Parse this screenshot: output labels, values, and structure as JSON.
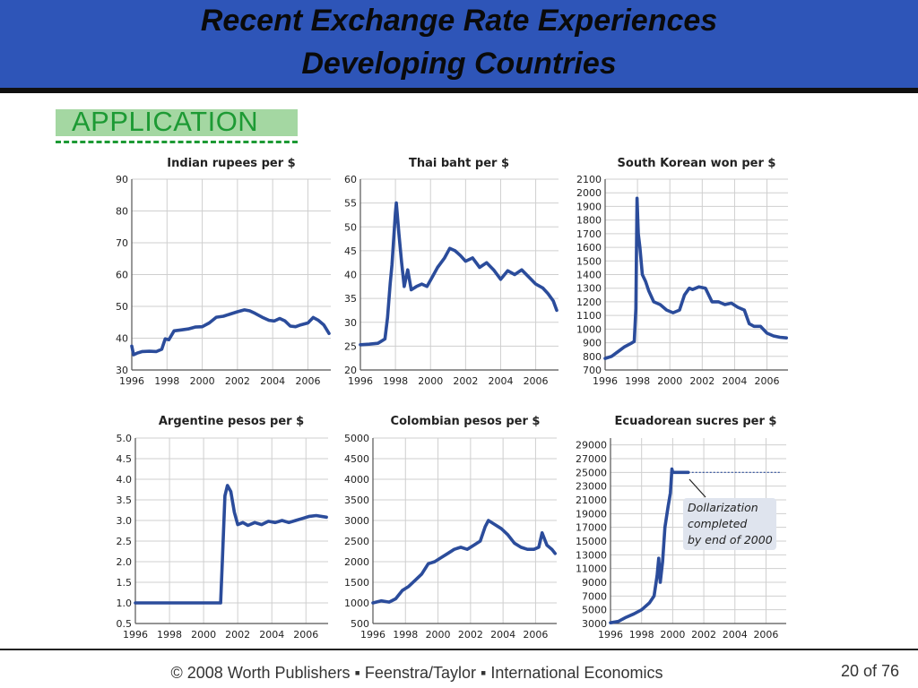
{
  "slide": {
    "title_line1": "Recent Exchange Rate Experiences",
    "title_line2": "Developing Countries",
    "tag": "APPLICATION",
    "footer": "© 2008 Worth Publishers ▪ Feenstra/Taylor ▪ International Economics",
    "page": "20 of 76"
  },
  "colors": {
    "header": "#2e55b8",
    "line": "#2b4c9b",
    "tag": "#1d9a34",
    "tag_bg": "#a4d7a2",
    "grid": "#cfcfcf"
  },
  "chart_data": [
    {
      "type": "line",
      "title": "Indian rupees per $",
      "xlim": [
        1996,
        2007.3
      ],
      "ylim": [
        30,
        90
      ],
      "xticks": [
        1996,
        1998,
        2000,
        2002,
        2004,
        2006
      ],
      "xtick_labels": [
        "1996",
        "1998",
        "2000",
        "2002",
        "2004",
        "2006"
      ],
      "yticks": [
        30,
        40,
        50,
        60,
        70,
        80,
        90
      ],
      "ytick_labels": [
        "30",
        "40",
        "50",
        "60",
        "70",
        "80",
        "90"
      ],
      "x": [
        1996.0,
        1996.1,
        1996.3,
        1996.6,
        1997.0,
        1997.4,
        1997.7,
        1997.9,
        1998.1,
        1998.4,
        1998.8,
        1999.2,
        1999.6,
        2000.0,
        2000.4,
        2000.8,
        2001.2,
        2001.6,
        2002.0,
        2002.4,
        2002.7,
        2003.0,
        2003.4,
        2003.8,
        2004.1,
        2004.4,
        2004.7,
        2005.0,
        2005.3,
        2005.6,
        2006.0,
        2006.3,
        2006.6,
        2006.9,
        2007.2
      ],
      "y": [
        37.5,
        34.8,
        35.3,
        35.8,
        35.9,
        35.8,
        36.5,
        39.8,
        39.5,
        42.3,
        42.6,
        42.9,
        43.5,
        43.6,
        44.8,
        46.6,
        46.9,
        47.6,
        48.3,
        48.9,
        48.6,
        47.8,
        46.6,
        45.6,
        45.4,
        46.2,
        45.4,
        43.8,
        43.6,
        44.2,
        44.8,
        46.5,
        45.6,
        44.2,
        41.5
      ]
    },
    {
      "type": "line",
      "title": "Thai baht per $",
      "xlim": [
        1996,
        2007.3
      ],
      "ylim": [
        20,
        60
      ],
      "xticks": [
        1996,
        1998,
        2000,
        2002,
        2004,
        2006
      ],
      "xtick_labels": [
        "1996",
        "1998",
        "2000",
        "2002",
        "2004",
        "2006"
      ],
      "yticks": [
        20,
        25,
        30,
        35,
        40,
        45,
        50,
        55,
        60
      ],
      "ytick_labels": [
        "20",
        "25",
        "30",
        "35",
        "40",
        "45",
        "50",
        "55",
        "60"
      ],
      "x": [
        1996.0,
        1996.5,
        1997.0,
        1997.4,
        1997.55,
        1997.7,
        1997.8,
        1998.0,
        1998.05,
        1998.2,
        1998.35,
        1998.5,
        1998.7,
        1998.9,
        1999.2,
        1999.5,
        1999.8,
        2000.1,
        2000.4,
        2000.8,
        2001.1,
        2001.4,
        2001.7,
        2002.0,
        2002.4,
        2002.8,
        2003.2,
        2003.6,
        2004.0,
        2004.4,
        2004.8,
        2005.2,
        2005.6,
        2006.0,
        2006.4,
        2006.7,
        2007.0,
        2007.2
      ],
      "y": [
        25.3,
        25.4,
        25.6,
        26.5,
        31.0,
        38.0,
        42.0,
        53.0,
        55.0,
        48.5,
        42.5,
        37.5,
        41.0,
        36.8,
        37.5,
        38.0,
        37.5,
        39.5,
        41.5,
        43.5,
        45.5,
        45.0,
        44.0,
        42.8,
        43.5,
        41.5,
        42.5,
        41.0,
        39.0,
        40.8,
        40.0,
        41.0,
        39.5,
        38.0,
        37.2,
        36.0,
        34.5,
        32.5
      ]
    },
    {
      "type": "line",
      "title": "South Korean won per $",
      "xlim": [
        1996,
        2007.3
      ],
      "ylim": [
        700,
        2100
      ],
      "xticks": [
        1996,
        1998,
        2000,
        2002,
        2004,
        2006
      ],
      "xtick_labels": [
        "1996",
        "1998",
        "2000",
        "2002",
        "2004",
        "2006"
      ],
      "yticks": [
        700,
        800,
        900,
        1000,
        1100,
        1200,
        1300,
        1400,
        1500,
        1600,
        1700,
        1800,
        1900,
        2000,
        2100
      ],
      "ytick_labels": [
        "700",
        "800",
        "900",
        "1000",
        "1100",
        "1200",
        "1300",
        "1400",
        "1500",
        "1600",
        "1700",
        "1800",
        "1900",
        "2000",
        "2100"
      ],
      "x": [
        1996.0,
        1996.4,
        1996.8,
        1997.2,
        1997.6,
        1997.8,
        1997.9,
        1997.97,
        1998.05,
        1998.15,
        1998.3,
        1998.5,
        1998.7,
        1999.0,
        1999.4,
        1999.8,
        2000.2,
        2000.6,
        2000.9,
        2001.2,
        2001.4,
        2001.8,
        2002.2,
        2002.6,
        2003.0,
        2003.4,
        2003.8,
        2004.2,
        2004.6,
        2004.9,
        2005.2,
        2005.6,
        2006.0,
        2006.4,
        2006.8,
        2007.2
      ],
      "y": [
        785,
        800,
        835,
        870,
        895,
        910,
        1150,
        1960,
        1700,
        1600,
        1400,
        1350,
        1280,
        1200,
        1180,
        1140,
        1120,
        1140,
        1250,
        1300,
        1290,
        1310,
        1300,
        1200,
        1200,
        1180,
        1190,
        1160,
        1140,
        1040,
        1020,
        1020,
        970,
        950,
        940,
        935
      ]
    },
    {
      "type": "line",
      "title": "Argentine pesos per $",
      "xlim": [
        1996,
        2007.3
      ],
      "ylim": [
        0.5,
        5.0
      ],
      "xticks": [
        1996,
        1998,
        2000,
        2002,
        2004,
        2006
      ],
      "xtick_labels": [
        "1996",
        "1998",
        "2000",
        "2002",
        "2004",
        "2006"
      ],
      "yticks": [
        0.5,
        1.0,
        1.5,
        2.0,
        2.5,
        3.0,
        3.5,
        4.0,
        4.5,
        5.0
      ],
      "ytick_labels": [
        "0.5",
        "1.0",
        "1.5",
        "2.0",
        "2.5",
        "3.0",
        "3.5",
        "4.0",
        "4.5",
        "5.0"
      ],
      "x": [
        1996.0,
        1998.0,
        2000.0,
        2001.0,
        2001.1,
        2001.25,
        2001.4,
        2001.6,
        2001.8,
        2002.0,
        2002.3,
        2002.6,
        2003.0,
        2003.4,
        2003.8,
        2004.2,
        2004.6,
        2005.0,
        2005.4,
        2005.8,
        2006.2,
        2006.6,
        2007.2
      ],
      "y": [
        1.0,
        1.0,
        1.0,
        1.0,
        2.0,
        3.6,
        3.85,
        3.7,
        3.2,
        2.9,
        2.95,
        2.88,
        2.95,
        2.9,
        2.98,
        2.95,
        3.0,
        2.95,
        3.0,
        3.05,
        3.1,
        3.12,
        3.08
      ]
    },
    {
      "type": "line",
      "title": "Colombian pesos per $",
      "xlim": [
        1996,
        2007.3
      ],
      "ylim": [
        500,
        5000
      ],
      "xticks": [
        1996,
        1998,
        2000,
        2002,
        2004,
        2006
      ],
      "xtick_labels": [
        "1996",
        "1998",
        "2000",
        "2002",
        "2004",
        "2006"
      ],
      "yticks": [
        500,
        1000,
        1500,
        2000,
        2500,
        3000,
        3500,
        4000,
        4500,
        5000
      ],
      "ytick_labels": [
        "500",
        "1000",
        "1500",
        "2000",
        "2500",
        "3000",
        "3500",
        "4000",
        "4500",
        "5000"
      ],
      "x": [
        1996.0,
        1996.5,
        1997.0,
        1997.4,
        1997.8,
        1998.2,
        1998.6,
        1999.0,
        1999.4,
        1999.8,
        2000.2,
        2000.6,
        2001.0,
        2001.4,
        2001.8,
        2002.2,
        2002.6,
        2002.9,
        2003.1,
        2003.5,
        2003.9,
        2004.3,
        2004.7,
        2005.1,
        2005.5,
        2005.9,
        2006.2,
        2006.4,
        2006.7,
        2007.0,
        2007.2
      ],
      "y": [
        1000,
        1050,
        1020,
        1100,
        1300,
        1400,
        1550,
        1700,
        1950,
        2000,
        2100,
        2200,
        2300,
        2350,
        2300,
        2400,
        2500,
        2850,
        3000,
        2900,
        2800,
        2650,
        2450,
        2350,
        2300,
        2300,
        2350,
        2700,
        2400,
        2300,
        2200
      ]
    },
    {
      "type": "line",
      "title": "Ecuadorean sucres per $",
      "xlim": [
        1996,
        2007.3
      ],
      "ylim": [
        3000,
        30000
      ],
      "xticks": [
        1996,
        1998,
        2000,
        2002,
        2004,
        2006
      ],
      "xtick_labels": [
        "1996",
        "1998",
        "2000",
        "2002",
        "2004",
        "2006"
      ],
      "yticks": [
        3000,
        5000,
        7000,
        9000,
        11000,
        13000,
        15000,
        17000,
        19000,
        21000,
        23000,
        25000,
        27000,
        29000
      ],
      "ytick_labels": [
        "3000",
        "5000",
        "7000",
        "9000",
        "11000",
        "13000",
        "15000",
        "17000",
        "19000",
        "21000",
        "23000",
        "25000",
        "27000",
        "29000"
      ],
      "x": [
        1996.0,
        1996.5,
        1997.0,
        1997.5,
        1998.0,
        1998.5,
        1998.8,
        1999.0,
        1999.1,
        1999.2,
        1999.35,
        1999.5,
        1999.7,
        1999.85,
        1999.95,
        2000.0,
        2000.2,
        2001.0
      ],
      "y": [
        3100,
        3300,
        3900,
        4400,
        5000,
        6000,
        7000,
        10000,
        12500,
        9000,
        12000,
        17000,
        20000,
        22000,
        25500,
        25000,
        25000,
        25000
      ],
      "dollarization": {
        "x": [
          2001.0,
          2007.0
        ],
        "y": 25000
      },
      "annotation": [
        "Dollarization",
        "completed",
        "by end of 2000"
      ]
    }
  ]
}
